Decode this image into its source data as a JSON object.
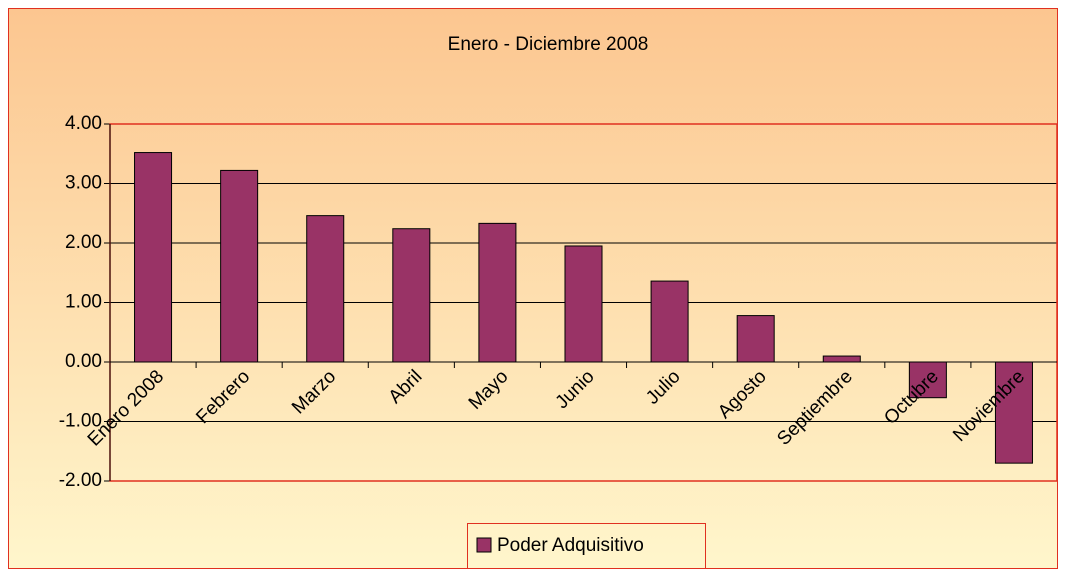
{
  "chart_data": {
    "type": "bar",
    "title": "Enero - Diciembre 2008",
    "categories": [
      "Enero 2008",
      "Febrero",
      "Marzo",
      "Abril",
      "Mayo",
      "Junio",
      "Julio",
      "Agosto",
      "Septiembre",
      "Octubre",
      "Noviembre"
    ],
    "series": [
      {
        "name": "Poder Adquisitivo",
        "color": "#993366",
        "values": [
          3.52,
          3.22,
          2.46,
          2.24,
          2.33,
          1.95,
          1.36,
          0.78,
          0.1,
          -0.6,
          -1.7
        ]
      }
    ],
    "ylim": [
      -2,
      4
    ],
    "yticks": [
      {
        "value": -2,
        "label": "-2.00"
      },
      {
        "value": -1,
        "label": "-1.00"
      },
      {
        "value": 0,
        "label": "0.00"
      },
      {
        "value": 1,
        "label": "1.00"
      },
      {
        "value": 2,
        "label": "2.00"
      },
      {
        "value": 3,
        "label": "3.00"
      },
      {
        "value": 4,
        "label": "4.00"
      }
    ],
    "grid": true,
    "legend": "bottom"
  }
}
